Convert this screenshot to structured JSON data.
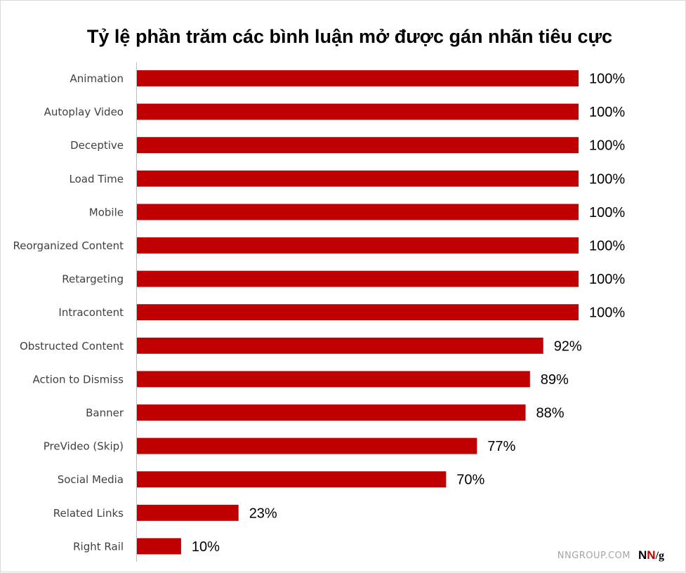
{
  "chart_data": {
    "type": "bar",
    "orientation": "horizontal",
    "title": "Tỷ lệ phần trăm các bình luận mở được gán nhãn tiêu cực",
    "xlabel": "",
    "ylabel": "",
    "xlim": [
      0,
      100
    ],
    "grid": false,
    "legend": "none",
    "categories": [
      "Animation",
      "Autoplay Video",
      "Deceptive",
      "Load Time",
      "Mobile",
      "Reorganized Content",
      "Retargeting",
      "Intracontent",
      "Obstructed Content",
      "Action to Dismiss",
      "Banner",
      "PreVideo (Skip)",
      "Social Media",
      "Related Links",
      "Right Rail"
    ],
    "values": [
      100,
      100,
      100,
      100,
      100,
      100,
      100,
      100,
      92,
      89,
      88,
      77,
      70,
      23,
      10
    ],
    "value_labels": [
      "100%",
      "100%",
      "100%",
      "100%",
      "100%",
      "100%",
      "100%",
      "100%",
      "92%",
      "89%",
      "88%",
      "77%",
      "70%",
      "23%",
      "10%"
    ],
    "bar_color": "#c00000"
  },
  "watermark": {
    "site": "NNGROUP.COM",
    "logo_n1": "N",
    "logo_n2": "N",
    "logo_slash": "/",
    "logo_g": "g",
    "logo_colors": {
      "n1": "#000000",
      "n2": "#c00000",
      "g": "#000000"
    }
  }
}
